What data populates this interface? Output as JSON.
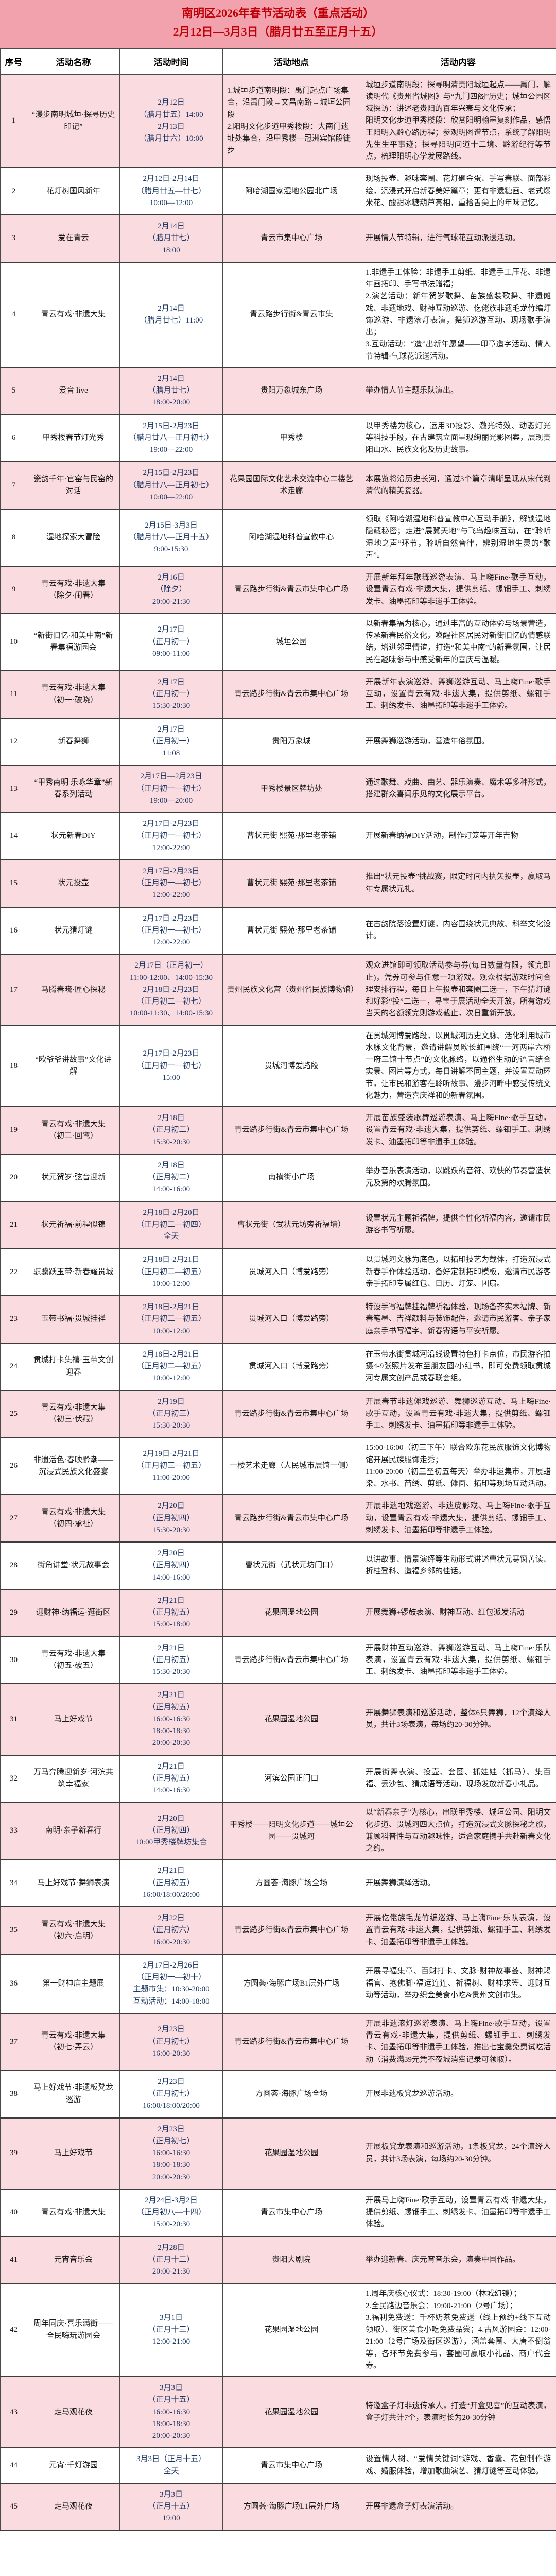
{
  "title": {
    "line1": "南明区2026年春节活动表（重点活动）",
    "line2": "2月12日—3月3日（腊月廿五至正月十五）"
  },
  "columns": [
    "序号",
    "活动名称",
    "活动时间",
    "活动地点",
    "活动内容"
  ],
  "colors": {
    "title_bg": "#f2a2ac",
    "title_text": "#bf0008",
    "row_alt_bg": "#fadce0",
    "time_text": "#1f3864",
    "border": "#4a4a4a"
  },
  "rows": [
    {
      "no": "1",
      "name": "“漫步南明城垣·探寻历史印记”",
      "time": "2月12日\n（腊月廿五）14:00\n2月13日\n（腊月廿六）10:00",
      "place": "1.城垣步道南明段：禹门起点广场集合，沿禹门段→文昌南路→城垣公园段\n2.阳明文化步道甲秀楼段：大南门遗址处集合，沿甲秀楼—冠洲宾馆段徒步",
      "content": "城垣步道南明段：探寻明清贵阳城垣起点——禹门，解读明代《贵州省城图》与“九门四阁”历史；城垣公园区域探访：讲述老贵阳的百年兴衰与文化传承；\n阳明文化步道甲秀楼段：欣赏阳明翰墨复刻作品，感悟王阳明入黔心路历程；参观明图谱节点，系统了解阳明先生生平事迹；探寻阳明问道十二境、黔游纪行等节点，梳理阳明心学发展路线。"
    },
    {
      "no": "2",
      "name": "花灯树国风新年",
      "time": "2月12日-2月14日\n（腊月廿五—廿七）\n10:00—12:00",
      "place": "阿哈湖国家湿地公园北广场",
      "content": "现场投壶、趣味套圈、花灯砸金蛋、手写春联、面部彩绘，沉浸式开启新春美好篇章；更有非遗糖画、老式爆米花、酸甜冰糖葫芦亮相，重拾舌尖上的年味记忆。"
    },
    {
      "no": "3",
      "name": "爱在青云",
      "time": "2月14日\n（腊月廿七）\n18:00",
      "place": "青云市集中心广场",
      "content": "开展情人节特辑，进行气球花互动派送活动。"
    },
    {
      "no": "4",
      "name": "青云有戏·非遗大集",
      "time": "2月14日\n（腊月廿七）11:00",
      "place": "青云路步行街&青云市集",
      "content": "1.非遗手工体验：非遗手工剪纸、非遗手工压花、非遗年画拓印、手写书法赠福；\n2.演艺活动：新年贺岁歌舞、苗族盛装歌舞、非遗傩戏、非遗地戏、财神互动巡游、仡佬族非遗毛龙竹编灯饰巡游、非遗滚灯表演，舞狮巡游互动、现场歌手演出；\n3.互动活动：“造”出新年愿望——印章造字活动、情人节特辑·气球花派送活动。"
    },
    {
      "no": "5",
      "name": "爱音 live",
      "time": "2月14日\n（腊月廿七）\n18:00-20:00",
      "place": "贵阳万象城东广场",
      "content": "举办情人节主题乐队演出。"
    },
    {
      "no": "6",
      "name": "甲秀楼春节灯光秀",
      "time": "2月15日-2月23日\n（腊月廿八—正月初七）\n19:00—22:00",
      "place": "甲秀楼",
      "content": "以甲秀楼为核心，运用3D投影、激光特效、动态灯光等科技手段，在古建筑立面呈现绚丽光影图案，展现贵阳山水、民族文化及历史故事。"
    },
    {
      "no": "7",
      "name": "瓷韵千年·官窑与民窑的对话",
      "time": "2月15日-2月23日\n（腊月廿八—正月初七）\n10:00—22:00",
      "place": "花果园国际文化艺术交流中心二楼艺术走廊",
      "content": "本展览将沿历史长河，通过3个篇章清晰呈现从宋代到清代的精美瓷器。"
    },
    {
      "no": "8",
      "name": "湿地探索大冒险",
      "time": "2月15日-3月3日\n（腊月廿八—正月十五）\n9:00-15:30",
      "place": "阿哈湖湿地科普宣教中心",
      "content": "领取《阿哈湖湿地科普宣教中心互动手册》，解锁湿地隐藏秘密；走进“展翼天地”与飞鸟趣味互动，在“聆听湿地之声”环节，聆听自然音律，辨别湿地生灵的“歌声”。"
    },
    {
      "no": "9",
      "name": "青云有戏·非遗大集\n（除夕·闹春）",
      "time": "2月16日\n（除夕）\n20:00-21:30",
      "place": "青云路步行街&青云市集中心广场",
      "content": "开展新年拜年歌舞巡游表演、马上嗨Fine·歌手互动，设置青云有戏·非遗大集，提供剪纸、螺钿手工、刺绣发卡、油墨拓印等非遗手工体验。"
    },
    {
      "no": "10",
      "name": "“新街旧忆·和美中南”新春集福游园会",
      "time": "2月17日\n（正月初一）\n09:00-11:00",
      "place": "城垣公园",
      "content": "以新春集福为核心，通过丰富的互动体验与场景营造，传承新春民俗文化，唤醒社区居民对新街旧忆的情感联结，增进邻里情谊，打造“和美中南”的新春氛围，让居民在趣味参与中感受新年的喜庆与温暖。"
    },
    {
      "no": "11",
      "name": "青云有戏·非遗大集\n（初一·破晓）",
      "time": "2月17日\n（正月初一）\n15:30-20:30",
      "place": "青云路步行街&青云市集中心广场",
      "content": "开展新年表演巡游、舞狮巡游互动、马上嗨Fine·歌手互动，设置青云有戏·非遗大集，提供剪纸、螺钿手工、刺绣发卡、油墨拓印等非遗手工体验。"
    },
    {
      "no": "12",
      "name": "新春舞狮",
      "time": "2月17日\n（正月初一）\n11:08",
      "place": "贵阳万象城",
      "content": "开展舞狮巡游活动，营造年俗氛围。"
    },
    {
      "no": "13",
      "name": "“甲秀南明 乐咏华章”新春系列活动",
      "time": "2月17日—2月23日\n（正月初一—初七）\n19:00—20:00",
      "place": "甲秀楼景区牌坊处",
      "content": "通过歌舞、戏曲、曲艺、器乐演奏、魔术等多种形式，搭建群众喜闻乐见的文化展示平台。"
    },
    {
      "no": "14",
      "name": "状元新春DIY",
      "time": "2月17日-2月23日\n（正月初一—初七）\n12:00-22:00",
      "place": "曹状元街 熙苑·那里老茶铺",
      "content": "开展新春纳福DIY活动，制作灯笼等开年吉物"
    },
    {
      "no": "15",
      "name": "状元投壶",
      "time": "2月17日-2月23日\n（正月初一—初七）\n12:00-22:00",
      "place": "曹状元街 熙苑·那里老茶铺",
      "content": "推出“状元投壶”挑战赛，限定时间内执矢投壶，赢取马年专属状元礼。"
    },
    {
      "no": "16",
      "name": "状元猜灯谜",
      "time": "2月17日-2月23日\n（正月初一—初七）\n12:00-22:00",
      "place": "曹状元街 熙苑·那里老茶铺",
      "content": "在古韵院落设置灯谜，内容围绕状元典故、科举文化设计。"
    },
    {
      "no": "17",
      "name": "马腾春晓·匠心探秘",
      "time": "2月17日（正月初一）\n11:00-12:00、14:00-15:30\n2月18日-2月23日\n（正月初二—初七）\n10:00-11:30、14:00-15:30",
      "place": "贵州民族文化宫（贵州省民族博物馆）",
      "content": "观众进馆即可领取活动参与券(每日数量有限，领完即止)，凭券可参与任意一项游戏。观众根据游戏时间合理安排行程，每日上午投壶和套圈二选一，下午猜灯谜和好彩“投”二选一，寻宝于展活动全天开放，所有游戏当天的名额领完则游戏截止，次日重新开放。"
    },
    {
      "no": "18",
      "name": "“欧爷爷讲故事”文化讲解",
      "time": "2月17日-2月23日\n（正月初一—初七）\n15:00",
      "place": "贯城河博爱路段",
      "content": "在贯城河博爱路段，以贯城河历史文脉、活化利用城市水脉文化背景，邀请讲解员欧长虹围绕“一河两岸六桥 一府三馆十节点”的文化脉络，以通俗生动的语言结合实景、图片等方式，每日讲解不同主题，并设置互动环节，让市民和游客在聆听故事、漫步河畔中感受传统文化魅力，营造喜庆祥和的新春氛围。"
    },
    {
      "no": "19",
      "name": "青云有戏·非遗大集\n（初二·回鸾）",
      "time": "2月18日\n（正月初二）\n15:30-20:30",
      "place": "青云路步行街&青云市集中心广场",
      "content": "开展苗族盛装歌舞巡游表演、马上嗨Fine·歌手互动，设置青云有戏·非遗大集，提供剪纸、螺钿手工、刺绣发卡、油墨拓印等非遗手工体验。"
    },
    {
      "no": "20",
      "name": "状元贺岁·弦音迎新",
      "time": "2月18日\n（正月初二）\n14:00-16:00",
      "place": "南横街小广场",
      "content": "举办音乐表演活动，以跳跃的音符、欢快的节奏营造状元及第的欢腾氛围。"
    },
    {
      "no": "21",
      "name": "状元祈福·前程似锦",
      "time": "2月18日-2月20日\n（正月初二—初四）\n全天",
      "place": "曹状元街（武状元坊旁祈福墙）",
      "content": "设置状元主题祈福牌，提供个性化祈福内容，邀请市民游客书写祈愿。"
    },
    {
      "no": "22",
      "name": "骐骥跃玉带·新春耀贯城",
      "time": "2月18日-2月21日\n（正月初二—初五）\n10:00-12:00",
      "place": "贯城河入口（博爱路旁）",
      "content": "以贯城河文脉为底色，以拓印技艺为载体，打造沉浸式新春手作体验活动，备好定制拓印模板，邀请市民游客亲手拓印专属红包、日历、灯笼、团扇。"
    },
    {
      "no": "23",
      "name": "玉带书福·贯城挂祥",
      "time": "2月18日-2月21日\n（正月初二—初五）\n10:00-12:00",
      "place": "贯城河入口（博爱路旁）",
      "content": "特设手写福牌挂福牌祈福体验，现场备齐实木福牌、新春笔墨、吉祥颜料与装饰配件，邀请市民游客、亲子家庭亲手书写福字、新春寄语与平安祈愿。"
    },
    {
      "no": "24",
      "name": "贯城打卡集禧·玉带文创迎春",
      "time": "2月18日-2月21日\n（正月初二—初五）\n10:00-12:00",
      "place": "贯城河入口（博爱路旁）",
      "content": "在玉带水街贯城河沿线设置特色打卡点位，市民游客拍摄4-9张照片发布至朋友圈/小红书，即可免费领取贯城河专属文创产品或春联套组。"
    },
    {
      "no": "25",
      "name": "青云有戏·非遗大集\n（初三·伏藏）",
      "time": "2月19日\n（正月初三）\n15:30-20:30",
      "place": "青云路步行街&青云市集中心广场",
      "content": "开展春节非遗傩戏巡游、舞狮巡游互动、马上嗨Fine·歌手互动，设置青云有戏·非遗大集，提供剪纸、螺钿手工、刺绣发卡、油墨拓印等非遗手工体验。"
    },
    {
      "no": "26",
      "name": "非遗活色·春映黔潮——沉浸式民族文化盛宴",
      "time": "2月19日-2月21日\n（正月初三—初五）\n11:00-20:00",
      "place": "一楼艺术走廊（人民城市展馆一侧）",
      "content": "15:00-16:00（初三下午）联合欧东花民族服饰文化博物馆开展民族服饰走秀；\n11:00-20:00（初三至初五每天）举办非遗集市，开展蜡染、水书、苗绣、剪纸、傩面、拓印等现场互动活动。"
    },
    {
      "no": "27",
      "name": "青云有戏·非遗大集\n（初四·承祉）",
      "time": "2月20日\n（正月初四）\n15:30-20:30",
      "place": "青云路步行街&青云市集中心广场",
      "content": "开展非遗地戏巡游、非遗皮影戏、马上嗨Fine·歌手互动，设置青云有戏·非遗大集，提供剪纸、螺钿手工、刺绣发卡、油墨拓印等非遗手工体验。"
    },
    {
      "no": "28",
      "name": "街角讲堂·状元故事会",
      "time": "2月20日\n（正月初四）\n14:00-16:00",
      "place": "曹状元街（武状元坊门口）",
      "content": "以讲故事、情景演绎等生动形式讲述曹状元寒窗苦读、折桂登科、造福乡邻的佳话。"
    },
    {
      "no": "29",
      "name": "迎财神·纳福运·逛街区",
      "time": "2月21日\n（正月初五）\n15:00-18:00",
      "place": "花果园湿地公园",
      "content": "开展舞狮+锣鼓表演、财神互动、红包派发活动"
    },
    {
      "no": "30",
      "name": "青云有戏·非遗大集\n（初五·破五）",
      "time": "2月21日\n（正月初五）\n15:30-20:30",
      "place": "青云路步行街&青云市集中心广场",
      "content": "开展财神互动巡游、舞狮巡游互动、马上嗨Fine·乐队表演，设置青云有戏·非遗大集，提供剪纸、螺钿手工、刺绣发卡、油墨拓印等非遗手工体验。"
    },
    {
      "no": "31",
      "name": "马上好戏节",
      "time": "2月21日\n（正月初五）\n16:00-16:30\n18:00-18:30\n20:00-20:30",
      "place": "花果园湿地公园",
      "content": "开展舞狮表演和巡游活动，整体6只舞狮，12个演绎人员，共计3场表演，每场约20-30分钟。"
    },
    {
      "no": "32",
      "name": "万马奔腾迎新岁·河滨共筑幸福家",
      "time": "2月21日\n（正月初五）\n14:00-16:30",
      "place": "河滨公园正门口",
      "content": "开展街舞表演、投壶、套圈、抓娃娃（抓马）、集百福、丢沙包、猜成语等活动，现场发放新春小礼品。"
    },
    {
      "no": "33",
      "name": "南明·亲子新春行",
      "time": "2月20日\n（正月初四）\n10:00甲秀楼牌坊集合",
      "place": "甲秀楼——阳明文化步道——城垣公园——贯城河",
      "content": "以“新春亲子”为核心，串联甲秀楼、城垣公园、阳明文化步道、贯城河四大点位，打造沉浸式文脉探秘之旅，兼顾科普性与互动趣味性，适合家庭携手共赴新春文化之约。"
    },
    {
      "no": "34",
      "name": "马上好戏节·舞狮表演",
      "time": "2月21日\n（正月初五）\n16:00/18:00/20:00",
      "place": "方圆荟·海豚广场全场",
      "content": "开展舞狮演绎活动。"
    },
    {
      "no": "35",
      "name": "青云有戏·非遗大集\n（初六·启明）",
      "time": "2月22日\n（正月初六）\n16:00-20:30",
      "place": "青云路步行街&青云市集中心广场",
      "content": "开展仡佬族毛龙竹编巡游、马上嗨Fine·乐队表演，设置青云有戏·非遗大集，提供剪纸、螺钿手工、刺绣发卡、油墨拓印等非遗手工体验。"
    },
    {
      "no": "36",
      "name": "第一财神庙主题展",
      "time": "2月17日-2月26日\n（正月初一—初十）\n主题市集：10:30-20:00\n互动活动：14:00-18:00",
      "place": "方圆荟·海豚广场B1层外广场",
      "content": "开展寻福集章、百财打卡、文脉·财神故事荟、财神赐福官、抱佛脚·福运连连、祈福树、财神求签、迎财互动等活动，举办织金美食小吃&贵州文创市集。"
    },
    {
      "no": "37",
      "name": "青云有戏·非遗大集\n（初七·弄云）",
      "time": "2月23日\n（正月初七）\n16:00-20:30",
      "place": "青云路步行街&青云市集中心广场",
      "content": "开展非遗滚灯巡游表演、马上嗨Fine·歌手互动，设置青云有戏·非遗大集，提供剪纸、螺钿手工、刺绣发卡、油墨拓印等非遗手工体验，推出七宝羹免费试吃活动（消费满39元凭不夜城消费记录可领取）。"
    },
    {
      "no": "38",
      "name": "马上好戏节·非遗板凳龙巡游",
      "time": "2月23日\n（正月初七）\n16:00/18:00/20:00",
      "place": "方圆荟·海豚广场全场",
      "content": "开展非遗板凳龙巡游活动。"
    },
    {
      "no": "39",
      "name": "马上好戏节",
      "time": "2月23日\n（正月初七）\n16:00-16:30\n18:00-18:30\n20:00-20:30",
      "place": "花果园湿地公园",
      "content": "开展板凳龙表演和巡游活动，1条板凳龙，24个演绎人员，共计3场表演，每场约20-30分钟。"
    },
    {
      "no": "40",
      "name": "青云有戏·非遗大集",
      "time": "2月24日-3月2日\n（正月初八—十四）\n15:00-20:30",
      "place": "青云市集中心广场",
      "content": "开展马上嗨Fine·歌手互动，设置青云有戏·非遗大集，提供剪纸、螺钿手工、刺绣发卡、油墨拓印等非遗手工体验。"
    },
    {
      "no": "41",
      "name": "元宵音乐会",
      "time": "2月28日\n（正月十二）\n20:00-21:30",
      "place": "贵阳大剧院",
      "content": "举办迎新春、庆元宵音乐会，演奏中国作品。"
    },
    {
      "no": "42",
      "name": "周年同庆·喜乐满街——全民嗨玩游园会",
      "time": "3月1日\n（正月十三）\n12:00-21:00",
      "place": "花果园湿地公园",
      "content": "1.周年庆核心仪式：18:30-19:00（林城幻镜）；\n2.全民路边音乐会：19:00-21:00（2号广场）；\n3.福利免费送：千杯奶茶免费送（线上预约+线下互动领取）、街区美食小吃免费品尝；4.古风游园会：12:00-21:00（2号广场及街区巡游），涵盖套圈、大唐不倒翁等，各环节免费参与，套圈可赢取小礼品、商户代金券。"
    },
    {
      "no": "43",
      "name": "走马观花夜",
      "time": "3月3日\n（正月十五）\n16:00-16:30\n18:00-18:30\n20:00-20:30",
      "place": "花果园湿地公园",
      "content": "特邀盒子灯非遗传承人，打造“开盒见喜”的互动表演，盒子灯共计7个，表演时长为20-30分钟"
    },
    {
      "no": "44",
      "name": "元宵·千灯游园",
      "time": "3月3日（正月十五）\n全天",
      "place": "青云市集中心广场",
      "content": "设置情人树、“爱情关键词”游戏、香囊、花包制作游戏、婚服体验，增加歌曲演艺、猜灯谜等互动体验。"
    },
    {
      "no": "45",
      "name": "走马观花夜",
      "time": "3月3日\n（正月十五）\n19:00",
      "place": "方圆荟·海豚广场L1层外广场",
      "content": "开展非遗盒子灯表演活动。"
    }
  ]
}
